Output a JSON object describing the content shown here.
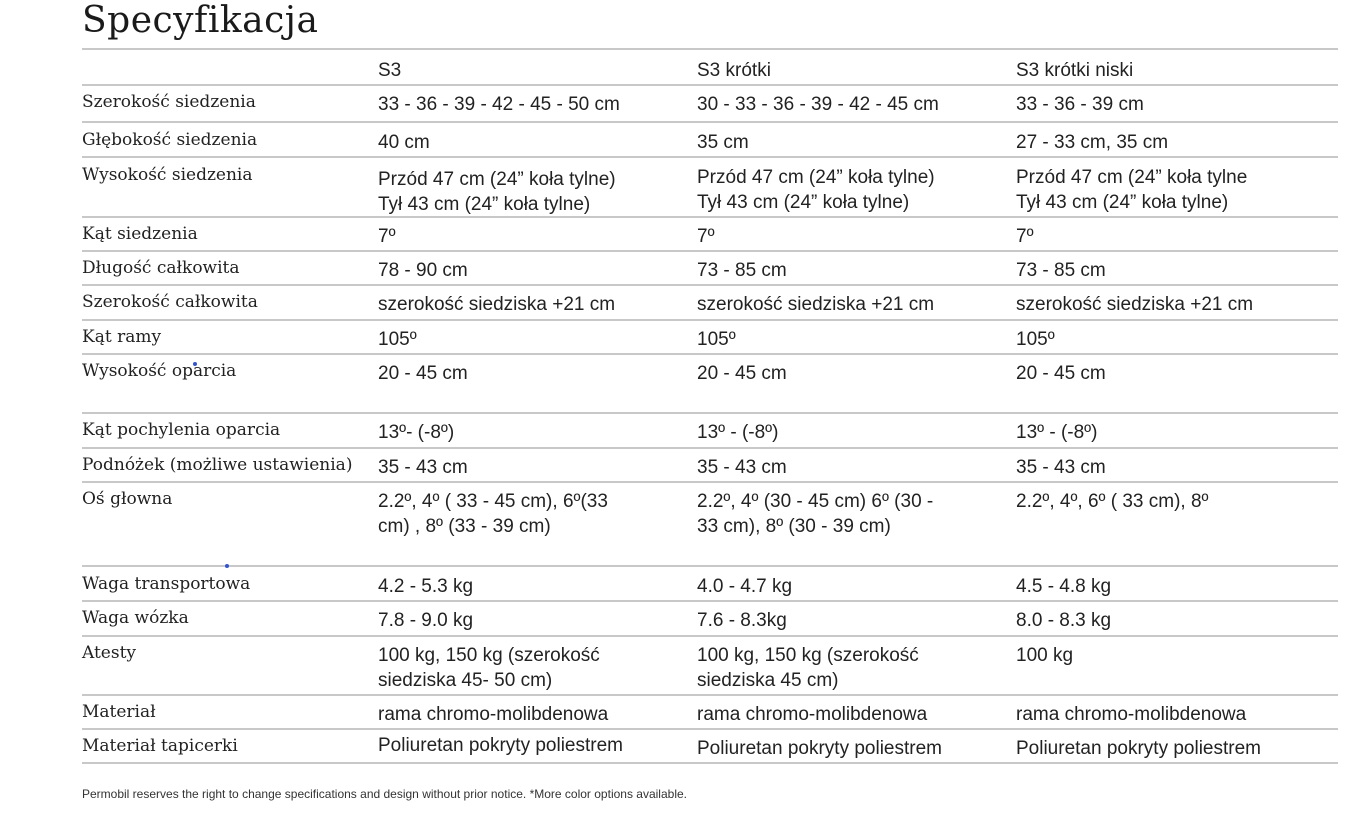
{
  "title": "Specyfikacja",
  "columns": [
    "S3",
    "S3 krótki",
    "S3 krótki niski"
  ],
  "rows": [
    {
      "label": "Szerokość siedzenia",
      "v": [
        "33 - 36 - 39 - 42 - 45 - 50 cm",
        "30 - 33 - 36 - 39 - 42 - 45 cm",
        "33 - 36 - 39 cm"
      ]
    },
    {
      "label": "Głębokość siedzenia",
      "v": [
        "40 cm",
        "35 cm",
        "27 - 33 cm, 35 cm"
      ]
    },
    {
      "label": "Wysokość siedzenia",
      "v": [
        "Przód 47 cm (24” koła tylne)\nTył 43 cm (24” koła tylne)",
        "Przód 47 cm (24” koła tylne)\n Tył 43 cm (24” koła tylne)",
        "Przód  47 cm  (24” koła  tylne\nTył 43 cm (24” koła tylne)"
      ]
    },
    {
      "label": "Kąt siedzenia",
      "v": [
        "7º",
        "7º",
        "7º"
      ]
    },
    {
      "label": "Długość całkowita",
      "v": [
        "78 - 90 cm",
        "73 - 85 cm",
        "73 - 85 cm"
      ]
    },
    {
      "label": "Szerokość całkowita",
      "v": [
        "szerokość siedziska +21 cm",
        "szerokość siedziska +21 cm",
        "szerokość siedziska +21 cm"
      ]
    },
    {
      "label": "Kąt ramy",
      "v": [
        "105º",
        "105º",
        "105º"
      ]
    },
    {
      "label": "Wysokość oparcia",
      "v": [
        "20 - 45 cm",
        "20 - 45 cm",
        "20 - 45 cm"
      ]
    },
    {
      "label": "Kąt pochylenia oparcia",
      "v": [
        "13º- (-8º)",
        "13º - (-8º)",
        "13º - (-8º)"
      ]
    },
    {
      "label": "Podnóżek (możliwe ustawienia)",
      "v": [
        "35 - 43 cm",
        "35 - 43 cm",
        "35 - 43 cm"
      ]
    },
    {
      "label": "Oś głowna",
      "v": [
        "2.2º, 4º ( 33 - 45 cm), 6º(33\ncm) , 8º (33 - 39 cm)",
        "2.2º, 4º (30 - 45 cm) 6º (30 -\n33 cm), 8º (30 - 39 cm)",
        "2.2º, 4º, 6º ( 33 cm), 8º"
      ]
    },
    {
      "label": "Waga transportowa",
      "v": [
        "4.2 - 5.3 kg",
        "4.0 - 4.7 kg",
        "4.5 - 4.8 kg"
      ]
    },
    {
      "label": "Waga wózka",
      "v": [
        "7.8 - 9.0 kg",
        "7.6 - 8.3kg",
        "8.0 - 8.3 kg"
      ]
    },
    {
      "label": "Atesty",
      "v": [
        "100 kg, 150 kg (szerokość\nsiedziska 45- 50 cm)",
        "100 kg, 150 kg (szerokość\nsiedziska 45 cm)",
        "100 kg"
      ]
    },
    {
      "label": "Materiał",
      "v": [
        "rama chromo-molibdenowa",
        "rama chromo-molibdenowa",
        "rama chromo-molibdenowa"
      ]
    },
    {
      "label": "Materiał tapicerki",
      "v": [
        "Poliuretan pokryty poliestrem",
        "Poliuretan pokryty poliestrem",
        "Poliuretan pokryty poliestrem"
      ]
    }
  ],
  "footnote": "Permobil reserves the right to change specifications and design without prior notice. *More color options available."
}
